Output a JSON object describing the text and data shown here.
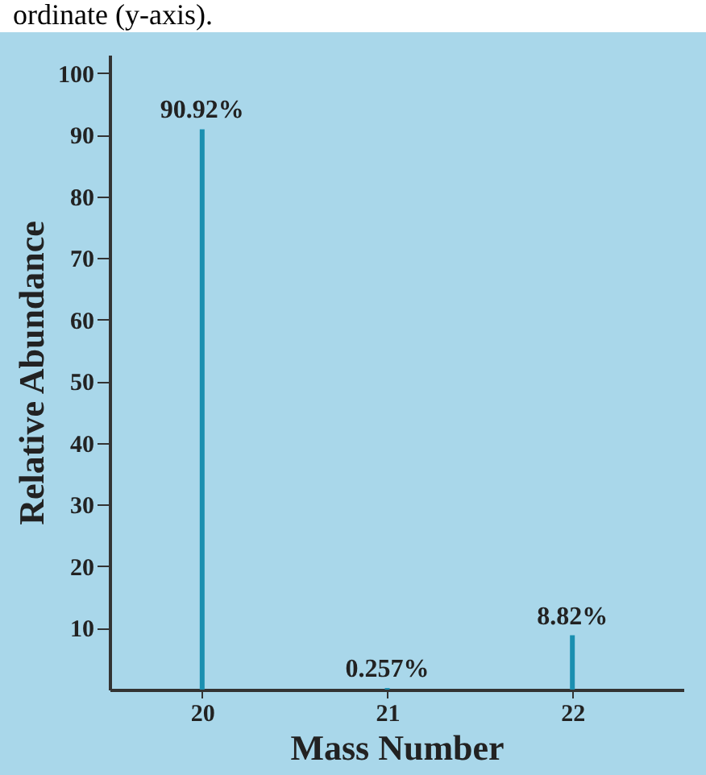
{
  "chart_data": {
    "type": "bar",
    "annotations": [
      "ordinate (y-axis)."
    ],
    "xlabel": "Mass Number",
    "ylabel": "Relative Abundance",
    "x": [
      20,
      21,
      22
    ],
    "values": [
      90.92,
      0.257,
      8.82
    ],
    "color": "#1a8fb0",
    "value_labels": [
      "90.92%",
      "0.257%",
      "8.82%"
    ],
    "xlim": [
      19.5,
      22.6
    ],
    "xticks": [
      20,
      21,
      22
    ],
    "ylim": [
      0,
      103
    ],
    "yticks": [
      10,
      20,
      30,
      40,
      50,
      60,
      70,
      80,
      90,
      100
    ]
  }
}
